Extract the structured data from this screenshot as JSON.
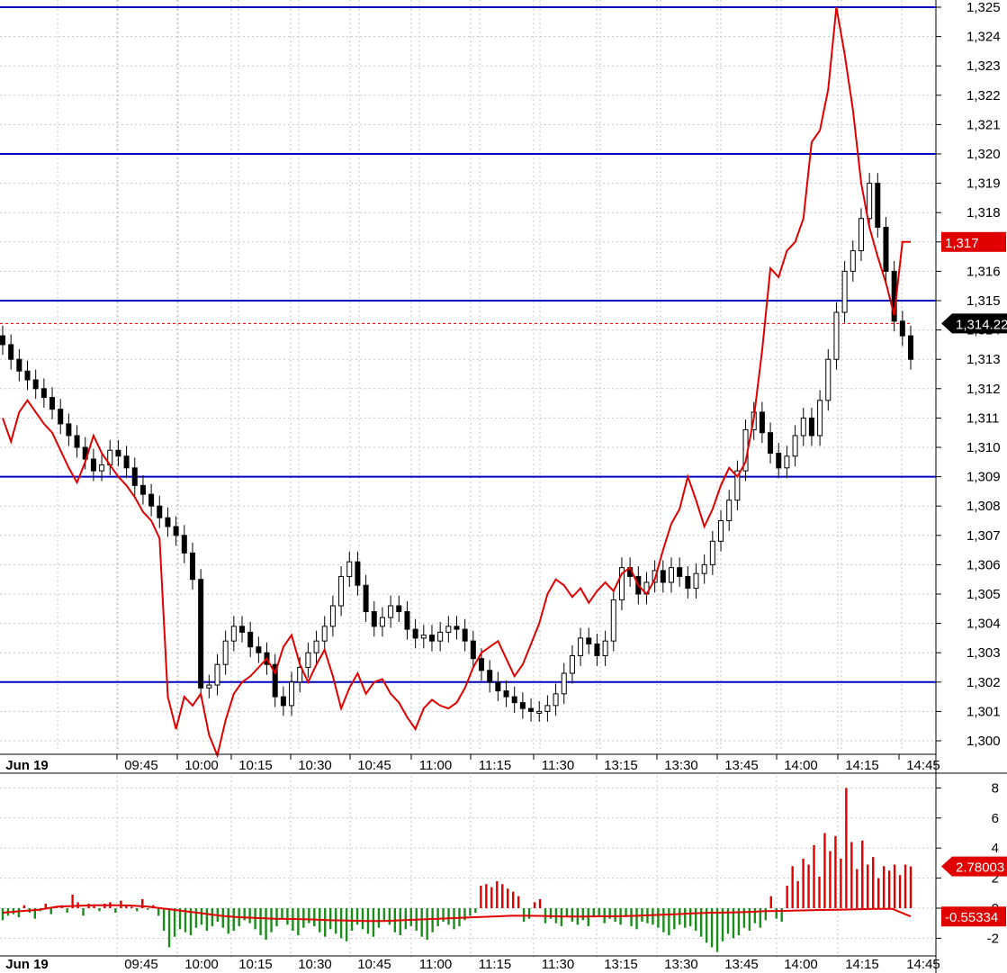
{
  "colors": {
    "grid": "#c8c8c8",
    "level_line": "#0000c0",
    "red_line": "#e00000",
    "bear_candle": "#000000",
    "bull_candle": "#ffffff",
    "hist_up": "#e00000",
    "hist_down": "#1a8c1a",
    "tag_red": "#e00000",
    "tag_black": "#000000"
  },
  "chart_data": [
    {
      "type": "candlestick",
      "ylim": [
        1299.3,
        1325.2
      ],
      "y_ticks": [
        "1,300",
        "1,301",
        "1,302",
        "1,303",
        "1,304",
        "1,305",
        "1,306",
        "1,307",
        "1,308",
        "1,309",
        "1,310",
        "1,311",
        "1,312",
        "1,313",
        "1,314",
        "1,315",
        "1,316",
        "1,317",
        "1,318",
        "1,319",
        "1,320",
        "1,321",
        "1,322",
        "1,323",
        "1,324",
        "1,325"
      ],
      "x_tick_labels": [
        "Jun 19",
        "09:45",
        "10:00",
        "10:15",
        "10:30",
        "10:45",
        "11:00",
        "11:15",
        "11:30",
        "13:15",
        "13:30",
        "13:45",
        "14:00",
        "14:15",
        "14:45"
      ],
      "horizontal_levels": [
        1325,
        1320,
        1315,
        1309,
        1302
      ],
      "dashed_level": 1314.22,
      "price_tags": [
        {
          "label": "1,317",
          "value": 1317,
          "color": "red"
        },
        {
          "label": "1,314.22",
          "value": 1314.22,
          "color": "black"
        }
      ],
      "close_path": [
        1313.5,
        1313.0,
        1312.6,
        1312.3,
        1312.0,
        1311.7,
        1311.3,
        1310.8,
        1310.4,
        1310.0,
        1309.6,
        1309.2,
        1309.4,
        1309.9,
        1309.7,
        1309.3,
        1308.7,
        1308.4,
        1308.0,
        1307.6,
        1307.3,
        1307.0,
        1306.4,
        1305.5,
        1301.8,
        1301.9,
        1302.6,
        1303.4,
        1303.9,
        1303.7,
        1303.2,
        1303.0,
        1302.6,
        1301.5,
        1301.2,
        1302.0,
        1302.5,
        1303.0,
        1303.4,
        1303.9,
        1304.6,
        1305.6,
        1306.1,
        1305.3,
        1304.4,
        1303.9,
        1304.2,
        1304.6,
        1304.4,
        1303.8,
        1303.5,
        1303.6,
        1303.4,
        1303.7,
        1303.9,
        1303.8,
        1303.4,
        1302.8,
        1302.4,
        1302.0,
        1301.7,
        1301.5,
        1301.3,
        1301.1,
        1301.0,
        1301.0,
        1301.2,
        1301.6,
        1302.3,
        1302.9,
        1303.5,
        1303.3,
        1302.9,
        1303.4,
        1304.8,
        1305.9,
        1305.6,
        1305.0,
        1305.4,
        1305.8,
        1305.4,
        1305.9,
        1305.6,
        1305.2,
        1305.7,
        1306.0,
        1306.8,
        1307.5,
        1308.2,
        1309.2,
        1310.6,
        1311.2,
        1310.5,
        1309.8,
        1309.3,
        1309.7,
        1310.4,
        1311.0,
        1310.4,
        1311.6,
        1313.0,
        1314.6,
        1316.0,
        1316.7,
        1317.8,
        1319.0,
        1317.5,
        1316.0,
        1314.3,
        1313.8,
        1313.0
      ],
      "red_line": [
        1311.0,
        1310.2,
        1311.2,
        1311.6,
        1311.2,
        1310.8,
        1310.5,
        1309.9,
        1309.3,
        1308.8,
        1309.5,
        1310.4,
        1309.8,
        1309.4,
        1309.0,
        1308.7,
        1308.3,
        1307.8,
        1307.5,
        1306.9,
        1301.5,
        1300.4,
        1301.5,
        1301.2,
        1301.6,
        1300.2,
        1299.5,
        1300.7,
        1301.6,
        1302.0,
        1302.2,
        1302.5,
        1302.8,
        1302.3,
        1303.2,
        1303.6,
        1302.6,
        1302.0,
        1302.6,
        1303.1,
        1302.2,
        1301.1,
        1301.8,
        1302.3,
        1301.6,
        1302.0,
        1302.1,
        1301.6,
        1301.3,
        1300.8,
        1300.4,
        1301.1,
        1301.4,
        1301.2,
        1301.1,
        1301.3,
        1301.8,
        1302.5,
        1303.0,
        1303.2,
        1303.4,
        1302.8,
        1302.2,
        1302.6,
        1303.3,
        1304.0,
        1305.0,
        1305.5,
        1305.3,
        1304.9,
        1305.2,
        1304.7,
        1305.1,
        1305.4,
        1305.1,
        1305.7,
        1305.9,
        1305.3,
        1305.0,
        1305.5,
        1306.5,
        1307.4,
        1307.9,
        1309.0,
        1308.2,
        1307.3,
        1307.9,
        1308.7,
        1309.3,
        1309.0,
        1309.5,
        1311.0,
        1313.3,
        1316.1,
        1315.8,
        1316.7,
        1317.0,
        1317.8,
        1320.4,
        1320.8,
        1322.2,
        1325.0,
        1323.4,
        1321.5,
        1319.0,
        1317.5,
        1316.5,
        1315.6,
        1314.5,
        1317.0,
        1317.0
      ],
      "series": [
        {
          "name": "",
          "kind": "candles"
        },
        {
          "name": "",
          "kind": "line"
        }
      ]
    },
    {
      "type": "bar",
      "ylim": [
        -3.4,
        8.4
      ],
      "y_ticks": [
        "8",
        "6",
        "4",
        "2",
        "0",
        "-2"
      ],
      "value_tags": [
        {
          "label": "2.78003",
          "value": 2.78,
          "color": "red"
        },
        {
          "label": "-0.55334",
          "value": -0.55334,
          "color": "red"
        }
      ],
      "histogram": [
        -0.8,
        -0.5,
        -0.4,
        -0.6,
        0.2,
        -0.3,
        -0.7,
        -0.2,
        0.3,
        -0.4,
        0.1,
        0.2,
        -0.3,
        0.9,
        0.4,
        -0.5,
        0.3,
        0.2,
        -0.2,
        0.3,
        0.4,
        -0.3,
        0.5,
        0.2,
        0.1,
        -0.2,
        0.6,
        -0.1,
        0.2,
        -0.5,
        -1.5,
        -2.6,
        -1.9,
        -1.4,
        -1.6,
        -1.8,
        -1.3,
        -1.1,
        -1.5,
        -1.2,
        -0.9,
        -1.3,
        -1.7,
        -1.5,
        -1.2,
        -0.8,
        -1.0,
        -1.4,
        -1.8,
        -2.1,
        -1.6,
        -1.2,
        -0.7,
        -1.1,
        -1.5,
        -1.8,
        -1.3,
        -1.0,
        -1.2,
        -1.6,
        -1.9,
        -1.4,
        -1.7,
        -2.0,
        -2.2,
        -1.5,
        -1.1,
        -1.4,
        -1.7,
        -1.9,
        -1.3,
        -0.8,
        -1.1,
        -1.6,
        -1.8,
        -1.4,
        -1.2,
        -1.5,
        -1.9,
        -2.1,
        -1.6,
        -1.2,
        -0.9,
        -1.1,
        -1.4,
        -1.2,
        -0.8,
        -0.5,
        -0.3,
        1.5,
        1.6,
        1.4,
        1.8,
        1.6,
        1.3,
        1.1,
        0.8,
        -0.9,
        -0.7,
        0.4,
        0.6,
        -1.0,
        -0.7,
        -1.0,
        -1.2,
        -0.6,
        -0.9,
        -1.1,
        -0.8,
        -1.2,
        -0.6,
        -0.5,
        -1.0,
        -0.7,
        -0.9,
        -1.1,
        -0.6,
        -1.2,
        -1.4,
        -0.9,
        -1.0,
        -1.1,
        -1.3,
        -1.6,
        -1.8,
        -1.4,
        -1.1,
        -1.3,
        -1.2,
        -1.5,
        -1.9,
        -2.3,
        -2.6,
        -2.9,
        -2.2,
        -1.7,
        -2.0,
        -1.8,
        -1.3,
        -1.5,
        -1.0,
        -1.3,
        -0.8,
        0.8,
        -0.7,
        -0.9,
        1.5,
        2.8,
        1.8,
        3.3,
        2.9,
        4.2,
        2.1,
        5.0,
        3.8,
        4.8,
        3.3,
        8.0,
        4.4,
        2.6,
        4.5,
        2.9,
        3.4,
        2.0,
        2.8,
        2.5,
        2.9,
        2.2,
        2.9,
        2.78
      ],
      "signal": [
        -0.3,
        -0.2,
        -0.1,
        0.1,
        0.15,
        0.2,
        0.2,
        0.18,
        0.1,
        -0.05,
        -0.2,
        -0.35,
        -0.5,
        -0.6,
        -0.65,
        -0.7,
        -0.72,
        -0.75,
        -0.8,
        -0.82,
        -0.85,
        -0.85,
        -0.8,
        -0.75,
        -0.7,
        -0.65,
        -0.6,
        -0.55,
        -0.5,
        -0.5,
        -0.52,
        -0.55,
        -0.55,
        -0.54,
        -0.53,
        -0.5,
        -0.45,
        -0.4,
        -0.35,
        -0.3,
        -0.28,
        -0.25,
        -0.2,
        -0.18,
        -0.15,
        -0.12,
        -0.1,
        -0.08,
        -0.05,
        -0.05,
        -0.55334
      ]
    }
  ]
}
